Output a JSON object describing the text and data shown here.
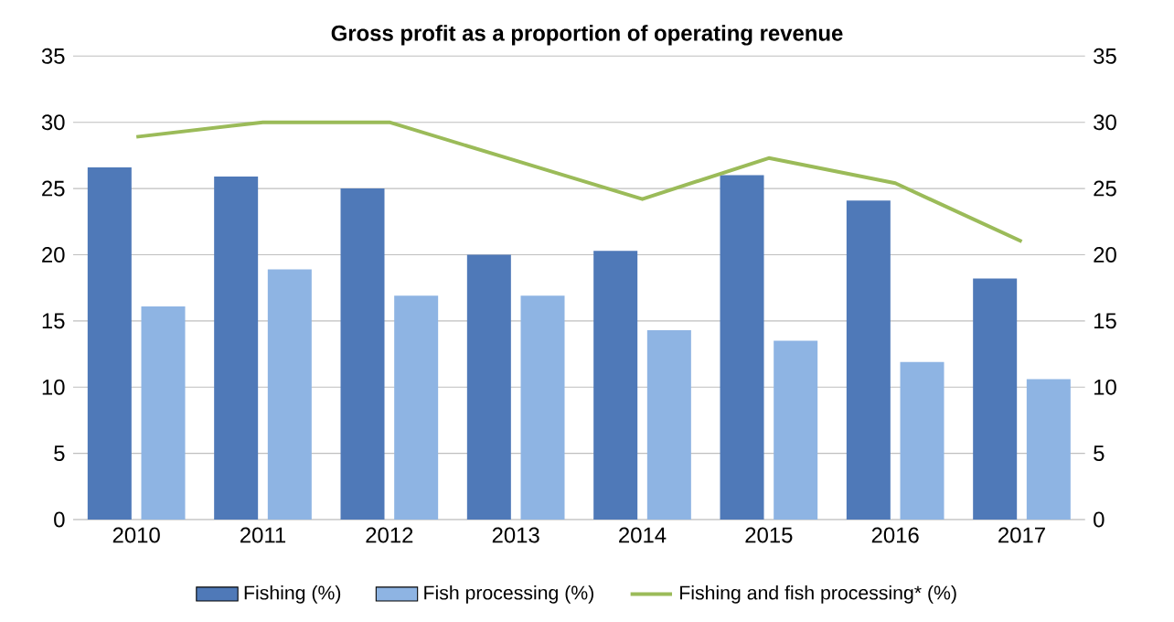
{
  "chart_data": {
    "type": "bar",
    "title": "Gross profit as a proportion of operating revenue",
    "categories": [
      "2010",
      "2011",
      "2012",
      "2013",
      "2014",
      "2015",
      "2016",
      "2017"
    ],
    "series": [
      {
        "name": "Fishing (%)",
        "color": "#4f79b8",
        "values": [
          26.6,
          25.9,
          25.0,
          20.0,
          20.3,
          26.0,
          24.1,
          18.2
        ]
      },
      {
        "name": "Fish processing (%)",
        "color": "#8eb4e3",
        "values": [
          16.1,
          18.9,
          16.9,
          16.9,
          14.3,
          13.5,
          11.9,
          10.6
        ]
      },
      {
        "name": "Fishing and fish processing* (%)",
        "type": "line",
        "axis": "y2",
        "color": "#9bbb59",
        "values": [
          28.9,
          30.0,
          30.0,
          27.1,
          24.2,
          27.3,
          25.4,
          21.0
        ]
      }
    ],
    "ylim": [
      0,
      35
    ],
    "yticks": [
      0,
      5,
      10,
      15,
      20,
      25,
      30,
      35
    ],
    "y2lim": [
      0,
      35
    ],
    "y2ticks": [
      0,
      5,
      10,
      15,
      20,
      25,
      30,
      35
    ],
    "grid": "y",
    "legend": "bottom"
  }
}
